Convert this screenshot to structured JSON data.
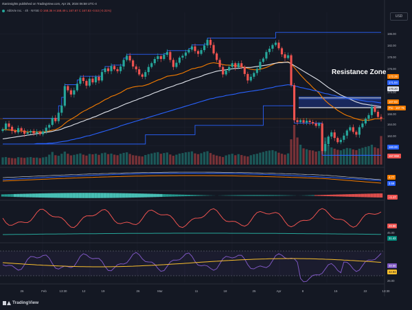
{
  "header": {
    "line1": "rkaninsights published on TradingView.com, Apr 25, 2024 06:58 UTC-4",
    "symbol": "AbbVie Inc.",
    "timeframe": "4h",
    "exchange": "NYSE",
    "o": "O 168.36",
    "h": "H 168.49",
    "l": "L 167.67",
    "c": "C 167.83",
    "chg": "-0.53 (-0.31%)"
  },
  "currency_label": "USD",
  "annotation": "Resistance Zone",
  "price_labels": {
    "p186": "186.00",
    "p182": "182.00",
    "p178": "178.00",
    "p176": "176.00",
    "p174": "174.00",
    "r1": "172.28",
    "r2": "171.84",
    "r3": "170.20",
    "current": "167.83",
    "pre": "Pre",
    "pre_price": "167.75",
    "p166": "166.00",
    "p164": "164.00",
    "p162": "162.00",
    "support": "160.00",
    "volume": "157.96K",
    "ma1": "4.77",
    "ma2": "3.59",
    "hist": "−1.17",
    "osc": "29.88",
    "osc2": "45.00",
    "trend": "31.43",
    "rsi_a": "48.56",
    "rsi_b": "42.93",
    "rsi_tick": "26.00"
  },
  "time_axis": [
    "26",
    "Feb",
    "13:30",
    "12",
    "19",
    "26",
    "Mar",
    "11",
    "18",
    "25",
    "Apr",
    "8",
    "15",
    "22",
    "13:30"
  ],
  "logo_text": "TradingView",
  "chart_data": {
    "type": "candlestick",
    "ylim": [
      158,
      190
    ],
    "current_price": 167.83,
    "resistance_zone": [
      170.2,
      172.28
    ],
    "support": 160.0,
    "close": [
      165.6,
      166.8,
      166.1,
      165.2,
      164.9,
      165.8,
      165.3,
      164.6,
      164.9,
      165.2,
      164.7,
      165.0,
      164.5,
      165.1,
      165.9,
      166.5,
      168.0,
      167.3,
      169.1,
      170.6,
      174.8,
      173.9,
      173.0,
      173.9,
      175.3,
      176.6,
      175.9,
      174.9,
      176.4,
      175.6,
      176.8,
      176.0,
      177.8,
      178.6,
      178.0,
      179.1,
      178.4,
      178.0,
      179.0,
      180.4,
      181.3,
      180.3,
      179.0,
      178.4,
      177.3,
      176.8,
      177.8,
      178.9,
      179.7,
      180.6,
      181.2,
      180.6,
      181.5,
      182.1,
      180.4,
      178.9,
      179.8,
      180.9,
      181.3,
      182.0,
      182.6,
      183.3,
      182.3,
      181.7,
      182.5,
      183.5,
      184.7,
      183.6,
      181.8,
      180.4,
      178.9,
      177.3,
      178.1,
      178.9,
      179.7,
      178.8,
      179.7,
      178.9,
      177.4,
      176.0,
      176.8,
      177.6,
      178.5,
      180.0,
      180.7,
      182.1,
      182.8,
      183.6,
      184.1,
      182.9,
      181.6,
      180.8,
      181.4,
      175.0,
      167.5,
      167.1,
      167.5,
      167.0,
      167.4,
      167.1,
      166.8,
      166.3,
      166.8,
      160.9,
      162.4,
      164.0,
      164.9,
      163.7,
      162.8,
      163.3,
      164.2,
      165.3,
      166.0,
      165.0,
      164.4,
      166.0,
      166.8,
      167.8,
      168.6,
      170.4,
      169.3,
      168.2,
      167.8
    ],
    "volume_unit": "K",
    "volume": [
      40,
      42,
      38,
      36,
      35,
      41,
      39,
      37,
      40,
      42,
      38,
      39,
      36,
      40,
      43,
      55,
      70,
      52,
      49,
      60,
      72,
      60,
      51,
      54,
      58,
      62,
      55,
      50,
      59,
      57,
      60,
      54,
      63,
      66,
      58,
      61,
      55,
      52,
      60,
      65,
      68,
      59,
      52,
      50,
      47,
      45,
      53,
      58,
      62,
      66,
      69,
      60,
      64,
      67,
      56,
      49,
      55,
      61,
      64,
      68,
      70,
      73,
      62,
      58,
      63,
      70,
      74,
      64,
      55,
      50,
      46,
      42,
      51,
      56,
      60,
      52,
      58,
      53,
      48,
      45,
      52,
      57,
      60,
      66,
      70,
      75,
      78,
      80,
      74,
      66,
      60,
      55,
      62,
      140,
      220,
      150,
      110,
      90,
      85,
      80,
      78,
      72,
      75,
      200,
      150,
      110,
      95,
      88,
      82,
      79,
      86,
      92,
      90,
      84,
      80,
      88,
      93,
      98,
      102,
      110,
      96,
      90,
      157.96
    ],
    "series": [
      {
        "name": "Upper Channel",
        "values": [
          167.9,
          167.9,
          167.9,
          167.9,
          167.9,
          167.9,
          167.9,
          167.9,
          167.9,
          167.9,
          167.9,
          167.9,
          167.9,
          167.9,
          167.9,
          167.9,
          167.9,
          167.9,
          170.6,
          172.4,
          175.1,
          175.1,
          175.1,
          175.1,
          176.1,
          176.9,
          176.9,
          176.9,
          176.9,
          176.9,
          176.9,
          176.9,
          178.3,
          179.0,
          179.0,
          179.3,
          179.3,
          179.3,
          179.3,
          180.8,
          181.6,
          181.6,
          181.6,
          181.6,
          181.6,
          181.6,
          181.6,
          181.6,
          181.6,
          181.6,
          181.6,
          181.6,
          181.7,
          182.4,
          182.4,
          182.4,
          182.4,
          182.4,
          182.4,
          182.4,
          182.9,
          183.6,
          183.6,
          183.6,
          183.6,
          183.8,
          185.1,
          185.1,
          185.1,
          185.1,
          185.1,
          185.1,
          185.1,
          185.1,
          185.1,
          185.1,
          185.1,
          185.1,
          185.1,
          185.1,
          185.1,
          185.1,
          185.1,
          185.1,
          185.1,
          185.1,
          185.1,
          185.1,
          186.3,
          186.3,
          186.3,
          186.3,
          186.3,
          186.3,
          186.3,
          186.3,
          186.3,
          186.3,
          186.3,
          186.3,
          186.3,
          186.3,
          186.3,
          186.3,
          186.3,
          186.3,
          186.3,
          186.3,
          186.3,
          186.3,
          186.3,
          186.3,
          186.3,
          186.3,
          186.3,
          186.3,
          186.3,
          186.3,
          186.3,
          186.3,
          186.3,
          186.3,
          186.3
        ]
      },
      {
        "name": "Lower Channel",
        "values": [
          162.4,
          162.4,
          162.4,
          162.4,
          162.4,
          162.4,
          162.4,
          162.4,
          162.4,
          162.4,
          162.4,
          162.4,
          162.4,
          162.4,
          162.4,
          162.4,
          162.4,
          162.4,
          162.4,
          162.4,
          162.4,
          162.4,
          162.4,
          162.4,
          162.4,
          162.4,
          162.4,
          162.4,
          162.4,
          162.4,
          162.4,
          162.4,
          162.4,
          162.4,
          162.4,
          162.4,
          162.4,
          162.4,
          162.4,
          162.4,
          162.4,
          162.4,
          162.4,
          162.4,
          162.4,
          162.4,
          164.4,
          164.4,
          164.4,
          164.4,
          164.4,
          164.4,
          164.4,
          164.4,
          164.4,
          164.4,
          164.4,
          164.4,
          164.4,
          164.4,
          164.4,
          164.4,
          166.4,
          166.4,
          166.4,
          166.4,
          166.4,
          166.4,
          166.4,
          166.4,
          166.4,
          166.4,
          166.4,
          166.4,
          166.4,
          166.4,
          166.4,
          166.4,
          166.4,
          166.4,
          166.4,
          166.4,
          166.4,
          166.4,
          170.6,
          170.6,
          170.6,
          170.6,
          170.6,
          170.6,
          170.6,
          170.6,
          170.6,
          170.6,
          166.9,
          166.9,
          166.9,
          166.9,
          166.9,
          166.9,
          166.9,
          166.9,
          166.9,
          160.0,
          160.0,
          160.0,
          160.0,
          160.0,
          160.0,
          160.0,
          160.0,
          160.0,
          160.0,
          160.0,
          160.0,
          160.0,
          160.0,
          160.0,
          160.0,
          160.0,
          160.0,
          160.0,
          160.0
        ]
      },
      {
        "name": "Moving Average (orange)",
        "values": [
          165.5,
          165.5,
          165.4,
          165.4,
          165.3,
          165.2,
          165.2,
          165.1,
          165.0,
          165.0,
          165.0,
          165.0,
          165.0,
          165.0,
          165.1,
          165.2,
          165.4,
          165.5,
          165.8,
          166.2,
          166.8,
          167.3,
          167.7,
          168.1,
          168.5,
          169.0,
          169.4,
          169.7,
          170.1,
          170.4,
          170.8,
          171.1,
          171.5,
          171.9,
          172.2,
          172.6,
          172.8,
          173.1,
          173.4,
          173.8,
          174.2,
          174.4,
          174.6,
          174.7,
          174.8,
          174.8,
          175.0,
          175.2,
          175.5,
          175.8,
          176.1,
          176.3,
          176.6,
          176.9,
          177.0,
          177.1,
          177.2,
          177.4,
          177.6,
          177.9,
          178.2,
          178.5,
          178.6,
          178.8,
          178.9,
          179.2,
          179.5,
          179.7,
          179.8,
          179.7,
          179.6,
          179.4,
          179.3,
          179.3,
          179.2,
          179.2,
          179.1,
          179.0,
          178.8,
          178.6,
          178.4,
          178.3,
          178.3,
          178.4,
          178.6,
          178.8,
          179.1,
          179.4,
          179.7,
          179.9,
          179.9,
          179.9,
          180.0,
          179.6,
          178.8,
          178.0,
          177.2,
          176.5,
          175.8,
          175.2,
          174.5,
          173.9,
          173.3,
          172.4,
          171.7,
          171.1,
          170.6,
          170.1,
          169.6,
          169.2,
          168.8,
          168.5,
          168.3,
          168.0,
          167.8,
          167.6,
          167.5,
          167.5,
          167.5,
          167.6,
          167.8,
          167.8,
          167.8
        ]
      },
      {
        "name": "Moving Average (white)",
        "values": [
          163.5,
          163.6,
          163.7,
          163.8,
          163.9,
          164.0,
          164.1,
          164.2,
          164.3,
          164.4,
          164.5,
          164.6,
          164.7,
          164.8,
          164.9,
          165.0,
          165.1,
          165.3,
          165.4,
          165.6,
          165.9,
          166.1,
          166.3,
          166.6,
          166.8,
          167.1,
          167.3,
          167.6,
          167.8,
          168.1,
          168.3,
          168.6,
          168.9,
          169.2,
          169.4,
          169.7,
          170.0,
          170.2,
          170.5,
          170.8,
          171.1,
          171.3,
          171.6,
          171.8,
          172.1,
          172.3,
          172.6,
          172.8,
          173.1,
          173.4,
          173.6,
          173.9,
          174.1,
          174.4,
          174.6,
          174.8,
          175.1,
          175.3,
          175.5,
          175.8,
          176.0,
          176.3,
          176.5,
          176.7,
          176.9,
          177.2,
          177.4,
          177.6,
          177.8,
          178.0,
          178.1,
          178.2,
          178.3,
          178.4,
          178.5,
          178.6,
          178.6,
          178.7,
          178.8,
          178.8,
          178.8,
          178.9,
          179.0,
          179.1,
          179.2,
          179.3,
          179.4,
          179.6,
          179.7,
          179.8,
          179.8,
          179.9,
          179.9,
          179.6,
          179.2,
          178.8,
          178.4,
          178.0,
          177.6,
          177.2,
          176.8,
          176.4,
          176.0,
          175.5,
          175.0,
          174.5,
          174.1,
          173.7,
          173.3,
          172.9,
          172.6,
          172.3,
          172.0,
          171.7,
          171.4,
          171.2,
          171.0,
          170.9,
          170.8,
          170.7,
          170.6,
          170.5,
          170.4
        ]
      },
      {
        "name": "Moving Average (blue)",
        "values": [
          162.4,
          162.4,
          162.4,
          162.4,
          162.4,
          162.4,
          162.4,
          162.4,
          162.4,
          162.4,
          162.4,
          162.5,
          162.5,
          162.5,
          162.5,
          162.6,
          162.6,
          162.7,
          162.8,
          162.9,
          163.0,
          163.1,
          163.3,
          163.4,
          163.6,
          163.7,
          163.9,
          164.1,
          164.2,
          164.4,
          164.6,
          164.8,
          165.0,
          165.2,
          165.4,
          165.6,
          165.8,
          166.0,
          166.3,
          166.5,
          166.7,
          166.9,
          167.1,
          167.3,
          167.5,
          167.7,
          167.9,
          168.1,
          168.3,
          168.5,
          168.7,
          168.9,
          169.1,
          169.3,
          169.5,
          169.7,
          169.9,
          170.1,
          170.3,
          170.5,
          170.7,
          170.9,
          171.1,
          171.3,
          171.5,
          171.7,
          171.9,
          172.1,
          172.2,
          172.4,
          172.5,
          172.6,
          172.8,
          172.9,
          173.0,
          173.1,
          173.3,
          173.4,
          173.5,
          173.6,
          173.7,
          173.8,
          173.9,
          174.0,
          174.1,
          174.3,
          174.4,
          174.5,
          174.7,
          174.8,
          174.9,
          175.0,
          175.1,
          175.0,
          174.8,
          174.7,
          174.5,
          174.4,
          174.2,
          174.1,
          173.9,
          173.8,
          173.6,
          173.4,
          173.2,
          173.1,
          172.9,
          172.8,
          172.6,
          172.5,
          172.4,
          172.2,
          172.1,
          172.0,
          171.9,
          171.8,
          171.7,
          171.6,
          171.5,
          171.5,
          171.4,
          171.3,
          171.2
        ]
      }
    ],
    "panes": [
      {
        "name": "Moving averages oscillator",
        "last_values": [
          4.77,
          3.59
        ]
      },
      {
        "name": "Histogram",
        "last_value": -1.17
      },
      {
        "name": "Oscillator",
        "last_values": [
          29.88,
          45.0,
          31.43
        ]
      },
      {
        "name": "RSI",
        "last_values": [
          48.56,
          42.93
        ]
      }
    ]
  },
  "colors": {
    "up": "#26a69a",
    "down": "#ef5350",
    "upper_channel": "#2962ff",
    "ma_orange": "#f57c00",
    "ma_white": "#e0e3eb",
    "ma_blue": "#2962ff",
    "resistance_fill": "#1a2c66",
    "resistance_line": "#d1d4dc",
    "background": "#141823"
  }
}
